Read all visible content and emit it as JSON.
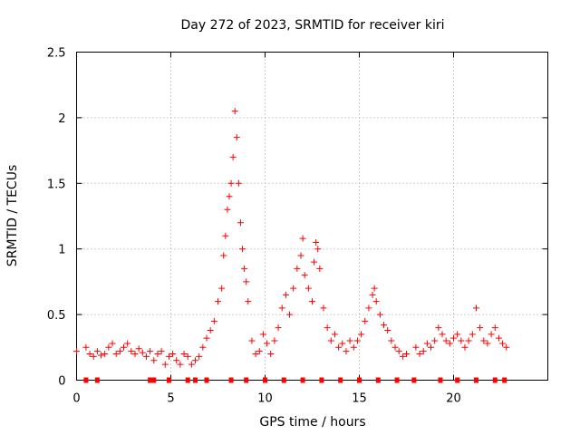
{
  "chart_data": {
    "type": "scatter",
    "title": "Day 272 of 2023, SRMTID for receiver kiri",
    "xlabel": "GPS time / hours",
    "ylabel": "SRMTID / TECUs",
    "xlim": [
      0,
      25
    ],
    "ylim": [
      0,
      2.5
    ],
    "xticks": [
      0,
      5,
      10,
      15,
      20
    ],
    "yticks": [
      0,
      0.5,
      1,
      1.5,
      2,
      2.5
    ],
    "xtick_labels": [
      "0",
      "5",
      "10",
      "15",
      "20"
    ],
    "ytick_labels": [
      "0",
      "0.5",
      "1",
      "1.5",
      "2",
      "2.5"
    ],
    "grid": true,
    "marker": "+",
    "color": "#ff0000",
    "series": [
      {
        "name": "SRMTID",
        "x": [
          0.0,
          0.5,
          0.7,
          0.9,
          1.1,
          1.3,
          1.5,
          1.7,
          1.9,
          2.1,
          2.3,
          2.5,
          2.7,
          2.9,
          3.1,
          3.3,
          3.5,
          3.7,
          3.9,
          4.1,
          4.3,
          4.5,
          4.7,
          4.9,
          5.1,
          5.3,
          5.5,
          5.7,
          5.9,
          6.1,
          6.3,
          6.5,
          6.7,
          6.9,
          7.1,
          7.3,
          7.5,
          7.7,
          7.8,
          7.9,
          8.0,
          8.1,
          8.2,
          8.3,
          8.4,
          8.5,
          8.6,
          8.7,
          8.8,
          8.9,
          9.0,
          9.1,
          9.3,
          9.5,
          9.7,
          9.9,
          10.1,
          10.3,
          10.5,
          10.7,
          10.9,
          11.1,
          11.3,
          11.5,
          11.7,
          11.9,
          12.0,
          12.1,
          12.3,
          12.5,
          12.6,
          12.7,
          12.8,
          12.9,
          13.1,
          13.3,
          13.5,
          13.7,
          13.9,
          14.1,
          14.3,
          14.5,
          14.7,
          14.9,
          15.1,
          15.3,
          15.5,
          15.7,
          15.8,
          15.9,
          16.1,
          16.3,
          16.5,
          16.7,
          16.9,
          17.1,
          17.3,
          17.5,
          18.0,
          18.2,
          18.4,
          18.6,
          18.8,
          19.0,
          19.2,
          19.4,
          19.6,
          19.8,
          20.0,
          20.2,
          20.4,
          20.6,
          20.8,
          21.0,
          21.2,
          21.4,
          21.6,
          21.8,
          22.0,
          22.2,
          22.4,
          22.6,
          22.8
        ],
        "y": [
          0.22,
          0.25,
          0.2,
          0.18,
          0.22,
          0.19,
          0.2,
          0.25,
          0.28,
          0.2,
          0.22,
          0.25,
          0.28,
          0.22,
          0.2,
          0.24,
          0.21,
          0.18,
          0.22,
          0.15,
          0.2,
          0.22,
          0.12,
          0.18,
          0.2,
          0.15,
          0.12,
          0.2,
          0.18,
          0.12,
          0.15,
          0.18,
          0.25,
          0.32,
          0.38,
          0.45,
          0.6,
          0.7,
          0.95,
          1.1,
          1.3,
          1.4,
          1.5,
          1.7,
          2.05,
          1.85,
          1.5,
          1.2,
          1.0,
          0.85,
          0.75,
          0.6,
          0.3,
          0.2,
          0.22,
          0.35,
          0.28,
          0.2,
          0.3,
          0.4,
          0.55,
          0.65,
          0.5,
          0.7,
          0.85,
          0.95,
          1.08,
          0.8,
          0.7,
          0.6,
          0.9,
          1.05,
          1.0,
          0.85,
          0.55,
          0.4,
          0.3,
          0.35,
          0.25,
          0.28,
          0.22,
          0.3,
          0.25,
          0.3,
          0.35,
          0.45,
          0.55,
          0.65,
          0.7,
          0.6,
          0.5,
          0.42,
          0.38,
          0.3,
          0.25,
          0.22,
          0.18,
          0.2,
          0.25,
          0.2,
          0.22,
          0.28,
          0.25,
          0.3,
          0.4,
          0.35,
          0.3,
          0.28,
          0.32,
          0.35,
          0.3,
          0.25,
          0.3,
          0.35,
          0.55,
          0.4,
          0.3,
          0.28,
          0.35,
          0.4,
          0.32,
          0.28,
          0.25
        ]
      }
    ],
    "outage_markers_x": [
      0.5,
      1.1,
      3.9,
      4.1,
      4.9,
      5.9,
      6.3,
      6.9,
      8.2,
      9.0,
      10.0,
      11.0,
      12.0,
      13.0,
      14.0,
      15.0,
      16.0,
      17.0,
      17.9,
      19.3,
      20.2,
      21.2,
      22.2,
      22.7
    ]
  }
}
